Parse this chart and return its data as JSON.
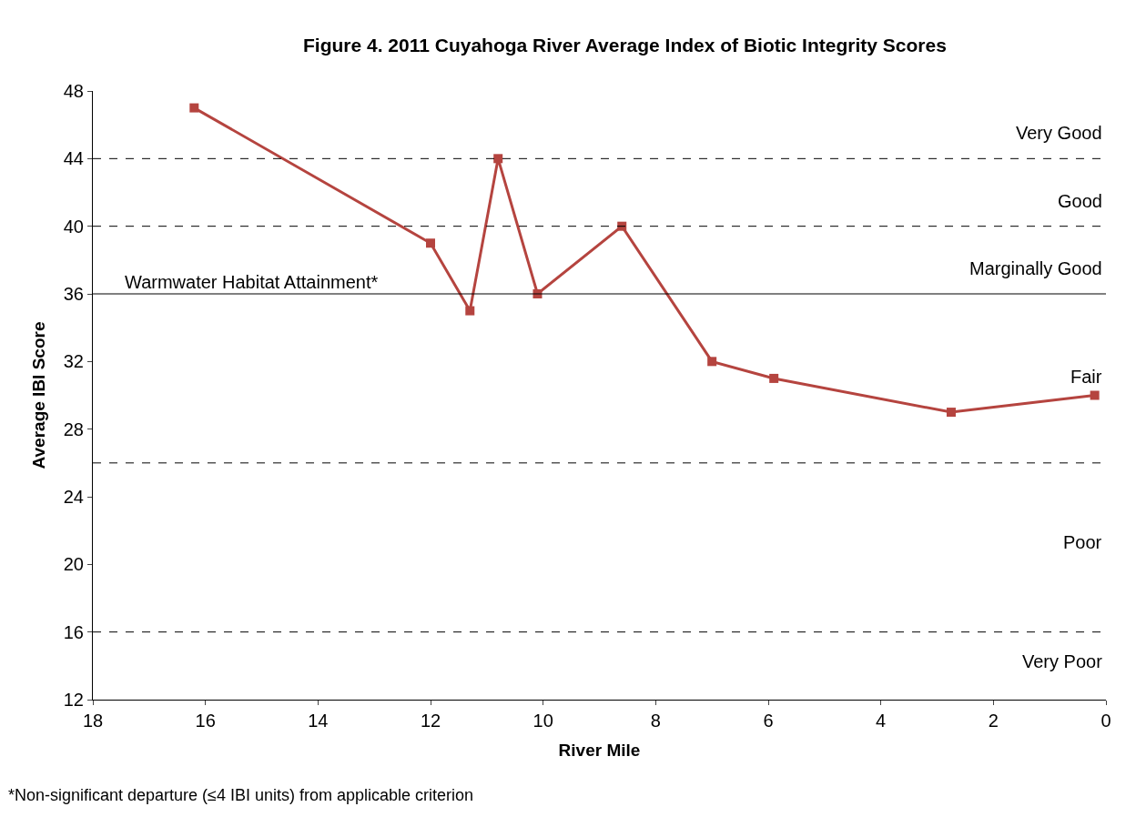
{
  "chart_data": {
    "type": "line",
    "title": "Figure 4. 2011 Cuyahoga River Average Index of Biotic Integrity Scores",
    "xlabel": "River Mile",
    "ylabel": "Average IBI Score",
    "x": [
      16.2,
      12,
      11.3,
      10.8,
      10.1,
      8.6,
      7,
      5.9,
      2.75,
      0.2
    ],
    "series": [
      {
        "color": "#b5443f",
        "values": [
          47,
          39,
          35,
          44,
          36,
          40,
          32,
          31,
          29,
          30
        ]
      }
    ],
    "xlim": [
      18,
      0
    ],
    "xticks": [
      18,
      16,
      14,
      12,
      10,
      8,
      6,
      4,
      2,
      0
    ],
    "ylim": [
      12,
      48
    ],
    "yticks": [
      12,
      16,
      20,
      24,
      28,
      32,
      36,
      40,
      44,
      48
    ],
    "ref_lines": [
      {
        "axis": "y",
        "value": 44,
        "line_style": "dashed"
      },
      {
        "axis": "y",
        "value": 40,
        "line_style": "dashed"
      },
      {
        "axis": "y",
        "value": 36,
        "line_style": "solid",
        "label": "Warmwater Habitat Attainment*"
      },
      {
        "axis": "y",
        "value": 26,
        "line_style": "dashed"
      },
      {
        "axis": "y",
        "value": 16,
        "line_style": "dashed"
      }
    ],
    "annotations": [
      "Very Good",
      "Good",
      "Marginally Good",
      "Fair",
      "Poor",
      "Very Poor",
      "*Non-significant departure (≤4 IBI units) from applicable criterion"
    ],
    "marker": "square",
    "line_style": "solid"
  }
}
